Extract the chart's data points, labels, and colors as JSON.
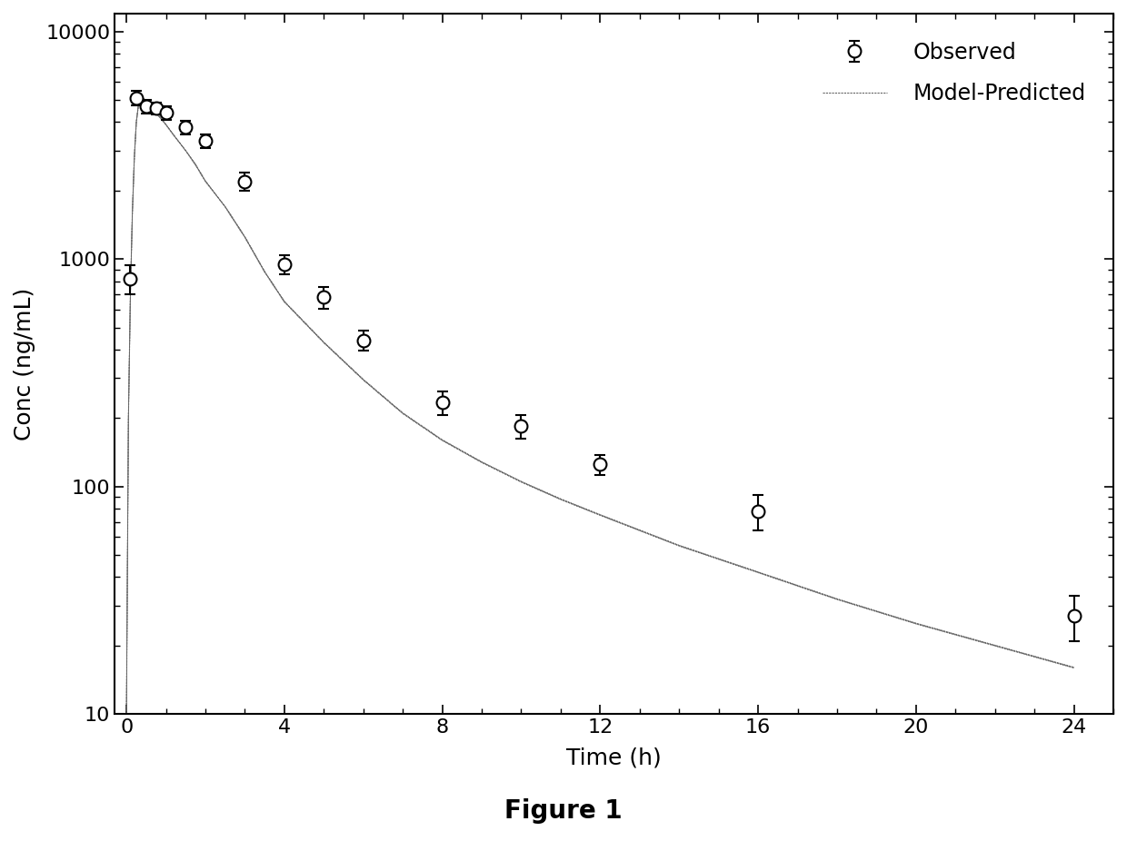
{
  "title": "Figure 1",
  "xlabel": "Time (h)",
  "ylabel": "Conc (ng/mL)",
  "xlim": [
    -0.3,
    25
  ],
  "ylim": [
    10,
    12000
  ],
  "xticks": [
    0,
    4,
    8,
    12,
    16,
    20,
    24
  ],
  "yticks": [
    10,
    100,
    1000,
    10000
  ],
  "ytick_labels": [
    "10",
    "100",
    "1000",
    "10000"
  ],
  "obs_x": [
    0.083,
    0.25,
    0.5,
    0.75,
    1.0,
    1.5,
    2.0,
    3.0,
    4.0,
    5.0,
    6.0,
    8.0,
    10.0,
    12.0,
    16.0,
    24.0
  ],
  "obs_y": [
    820,
    5100,
    4700,
    4600,
    4400,
    3800,
    3300,
    2200,
    950,
    680,
    440,
    235,
    185,
    125,
    78,
    27
  ],
  "obs_yerr_lo": [
    120,
    380,
    320,
    280,
    290,
    270,
    230,
    200,
    90,
    75,
    45,
    28,
    22,
    13,
    14,
    6
  ],
  "obs_yerr_hi": [
    120,
    380,
    320,
    280,
    290,
    270,
    230,
    200,
    90,
    75,
    45,
    28,
    22,
    13,
    14,
    6
  ],
  "model_x": [
    0.0,
    0.05,
    0.1,
    0.15,
    0.2,
    0.25,
    0.3,
    0.35,
    0.4,
    0.45,
    0.5,
    0.55,
    0.6,
    0.65,
    0.7,
    0.75,
    0.85,
    1.0,
    1.2,
    1.5,
    1.75,
    2.0,
    2.5,
    3.0,
    3.5,
    4.0,
    5.0,
    6.0,
    7.0,
    8.0,
    9.0,
    10.0,
    11.0,
    12.0,
    14.0,
    16.0,
    18.0,
    20.0,
    22.0,
    24.0
  ],
  "model_y": [
    10,
    200,
    700,
    1600,
    2800,
    4000,
    4700,
    5000,
    5100,
    5050,
    4950,
    4800,
    4700,
    4600,
    4500,
    4400,
    4200,
    3900,
    3500,
    3000,
    2600,
    2200,
    1700,
    1250,
    880,
    650,
    430,
    295,
    210,
    160,
    128,
    105,
    88,
    75,
    55,
    42,
    32,
    25,
    20,
    16
  ],
  "line_color": "#666666",
  "marker_color": "#000000",
  "background_color": "#ffffff",
  "legend_marker_label": "Observed",
  "legend_line_label": "Model-Predicted",
  "title_fontsize": 20,
  "label_fontsize": 18,
  "tick_fontsize": 16,
  "legend_fontsize": 17
}
